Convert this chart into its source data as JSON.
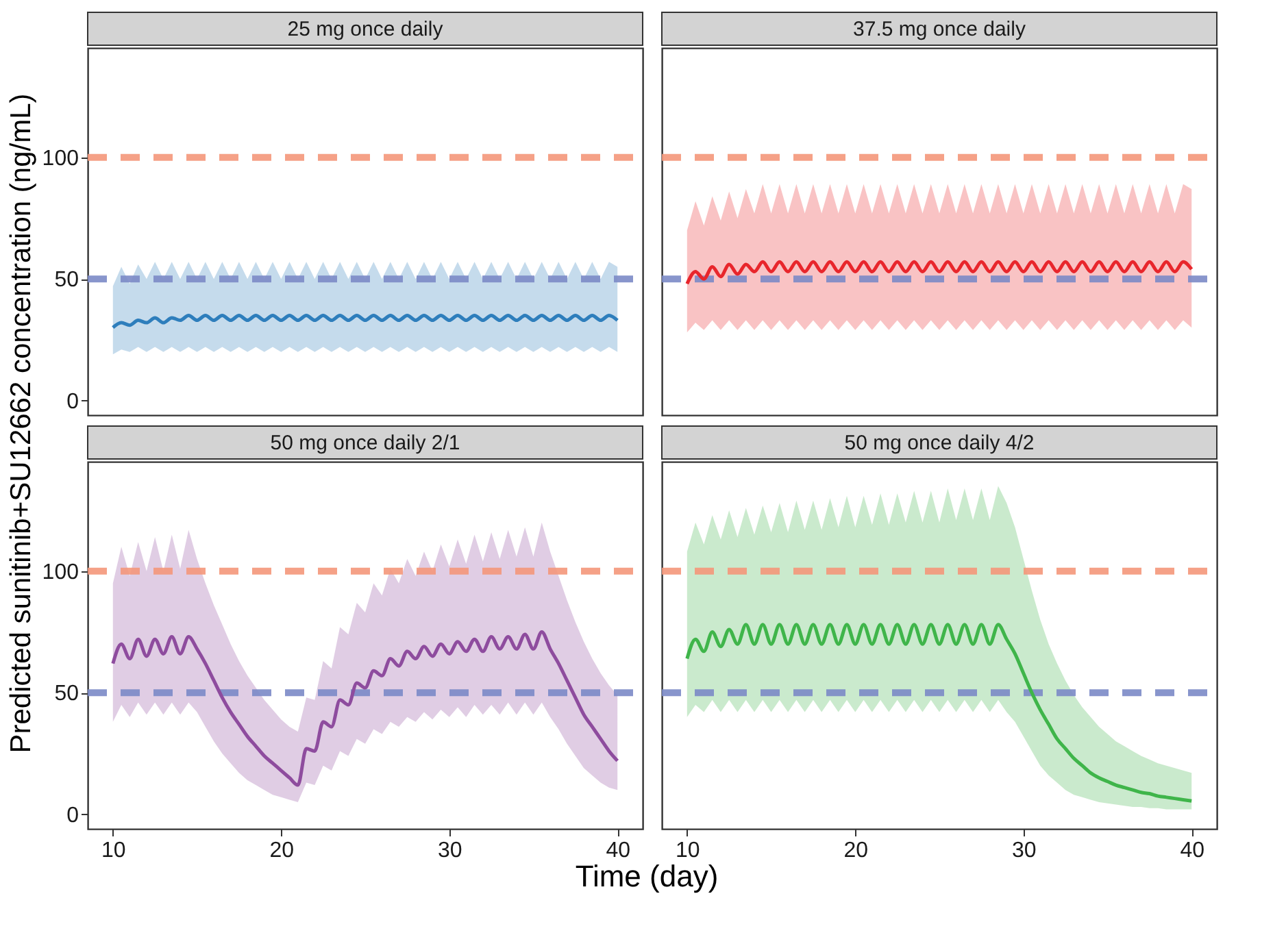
{
  "chart_data": [
    {
      "type": "line",
      "title": "25 mg once daily",
      "ylabel": "Predicted sunitinib+SU12662 concentration (ng/mL)",
      "xlim": [
        8.5,
        41.5
      ],
      "ylim": [
        -6,
        145
      ],
      "xticks": [
        10,
        20,
        30,
        40
      ],
      "yticks": [
        0,
        50,
        100
      ],
      "tick_labels": "y",
      "grid": false,
      "line_style": "solid",
      "x": [
        10,
        10.5,
        11,
        11.5,
        12,
        12.5,
        13,
        13.5,
        14,
        14.5,
        15,
        15.5,
        16,
        16.5,
        17,
        17.5,
        18,
        18.5,
        19,
        19.5,
        20,
        20.5,
        21,
        21.5,
        22,
        22.5,
        23,
        23.5,
        24,
        24.5,
        25,
        25.5,
        26,
        26.5,
        27,
        27.5,
        28,
        28.5,
        29,
        29.5,
        30,
        30.5,
        31,
        31.5,
        32,
        32.5,
        33,
        33.5,
        34,
        34.5,
        35,
        35.5,
        36,
        36.5,
        37,
        37.5,
        38,
        38.5,
        39,
        39.5,
        40
      ],
      "series": [
        {
          "color": "#2e7ebc",
          "values": [
            30,
            32,
            31,
            33,
            32,
            34,
            32,
            34,
            33,
            35,
            33,
            35,
            33,
            35,
            33,
            35,
            33,
            35,
            33,
            35,
            33,
            35,
            33,
            35,
            33,
            35,
            33,
            35,
            33,
            35,
            33,
            35,
            33,
            35,
            33,
            35,
            33,
            35,
            33,
            35,
            33,
            35,
            33,
            35,
            33,
            35,
            33,
            35,
            33,
            35,
            33,
            35,
            33,
            35,
            33,
            35,
            33,
            35,
            33,
            35,
            33
          ],
          "lower": [
            19,
            21,
            20,
            22,
            20,
            22,
            20,
            22,
            20,
            22,
            20,
            22,
            20,
            22,
            20,
            22,
            20,
            22,
            20,
            22,
            20,
            22,
            20,
            22,
            20,
            22,
            20,
            22,
            20,
            22,
            20,
            22,
            20,
            22,
            20,
            22,
            20,
            22,
            20,
            22,
            20,
            22,
            20,
            22,
            20,
            22,
            20,
            22,
            20,
            22,
            20,
            22,
            20,
            22,
            20,
            22,
            20,
            22,
            20,
            22,
            20
          ],
          "upper": [
            47,
            55,
            48,
            56,
            50,
            57,
            50,
            57,
            50,
            57,
            50,
            57,
            50,
            57,
            50,
            57,
            50,
            57,
            50,
            57,
            50,
            57,
            50,
            57,
            50,
            57,
            50,
            57,
            50,
            57,
            50,
            57,
            50,
            57,
            50,
            57,
            50,
            57,
            50,
            57,
            50,
            57,
            50,
            57,
            50,
            57,
            50,
            57,
            50,
            57,
            50,
            57,
            50,
            57,
            50,
            57,
            50,
            57,
            50,
            57,
            55
          ]
        }
      ],
      "ref_lines": [
        {
          "axis": "y",
          "value": 100,
          "color": "#f4977a",
          "line_style": "dashed"
        },
        {
          "axis": "y",
          "value": 50,
          "color": "#7b8ac7",
          "line_style": "dashed"
        }
      ]
    },
    {
      "type": "line",
      "title": "37.5 mg once daily",
      "xlim": [
        8.5,
        41.5
      ],
      "ylim": [
        -6,
        145
      ],
      "xticks": [
        10,
        20,
        30,
        40
      ],
      "yticks": [
        0,
        50,
        100
      ],
      "tick_labels": false,
      "grid": false,
      "line_style": "solid",
      "x": [
        10,
        10.5,
        11,
        11.5,
        12,
        12.5,
        13,
        13.5,
        14,
        14.5,
        15,
        15.5,
        16,
        16.5,
        17,
        17.5,
        18,
        18.5,
        19,
        19.5,
        20,
        20.5,
        21,
        21.5,
        22,
        22.5,
        23,
        23.5,
        24,
        24.5,
        25,
        25.5,
        26,
        26.5,
        27,
        27.5,
        28,
        28.5,
        29,
        29.5,
        30,
        30.5,
        31,
        31.5,
        32,
        32.5,
        33,
        33.5,
        34,
        34.5,
        35,
        35.5,
        36,
        36.5,
        37,
        37.5,
        38,
        38.5,
        39,
        39.5,
        40
      ],
      "series": [
        {
          "color": "#e8262c",
          "values": [
            48,
            53,
            50,
            55,
            51,
            56,
            52,
            56,
            53,
            57,
            53,
            57,
            53,
            57,
            53,
            57,
            53,
            57,
            53,
            57,
            53,
            57,
            53,
            57,
            53,
            57,
            53,
            57,
            53,
            57,
            53,
            57,
            53,
            57,
            53,
            57,
            53,
            57,
            53,
            57,
            53,
            57,
            53,
            57,
            53,
            57,
            53,
            57,
            53,
            57,
            53,
            57,
            53,
            57,
            53,
            57,
            53,
            57,
            53,
            57,
            54
          ],
          "lower": [
            28,
            32,
            29,
            33,
            29,
            33,
            29,
            33,
            29,
            33,
            29,
            33,
            29,
            33,
            29,
            33,
            29,
            33,
            29,
            33,
            29,
            33,
            29,
            33,
            29,
            33,
            29,
            33,
            29,
            33,
            29,
            33,
            29,
            33,
            29,
            33,
            29,
            33,
            29,
            33,
            29,
            33,
            29,
            33,
            29,
            33,
            29,
            33,
            29,
            33,
            29,
            33,
            29,
            33,
            29,
            33,
            29,
            33,
            29,
            33,
            30
          ],
          "upper": [
            70,
            82,
            72,
            84,
            74,
            86,
            75,
            87,
            77,
            89,
            77,
            89,
            77,
            89,
            77,
            89,
            77,
            89,
            77,
            89,
            77,
            89,
            77,
            89,
            77,
            89,
            77,
            89,
            77,
            89,
            77,
            89,
            77,
            89,
            77,
            89,
            77,
            89,
            77,
            89,
            77,
            89,
            77,
            89,
            77,
            89,
            77,
            89,
            77,
            89,
            77,
            89,
            77,
            89,
            77,
            89,
            77,
            89,
            77,
            89,
            87
          ]
        }
      ],
      "ref_lines": [
        {
          "axis": "y",
          "value": 100,
          "color": "#f4977a",
          "line_style": "dashed"
        },
        {
          "axis": "y",
          "value": 50,
          "color": "#7b8ac7",
          "line_style": "dashed"
        }
      ]
    },
    {
      "type": "line",
      "title": "50 mg once daily 2/1",
      "xlabel": "Time (day)",
      "xlim": [
        8.5,
        41.5
      ],
      "ylim": [
        -6,
        145
      ],
      "xticks": [
        10,
        20,
        30,
        40
      ],
      "yticks": [
        0,
        50,
        100
      ],
      "grid": false,
      "line_style": "solid",
      "x": [
        10,
        10.5,
        11,
        11.5,
        12,
        12.5,
        13,
        13.5,
        14,
        14.5,
        15,
        15.5,
        16,
        16.5,
        17,
        17.5,
        18,
        18.5,
        19,
        19.5,
        20,
        20.5,
        21,
        21.5,
        22,
        22.5,
        23,
        23.5,
        24,
        24.5,
        25,
        25.5,
        26,
        26.5,
        27,
        27.5,
        28,
        28.5,
        29,
        29.5,
        30,
        30.5,
        31,
        31.5,
        32,
        32.5,
        33,
        33.5,
        34,
        34.5,
        35,
        35.5,
        36,
        36.5,
        37,
        37.5,
        38,
        38.5,
        39,
        39.5,
        40
      ],
      "series": [
        {
          "color": "#8e4c9e",
          "values": [
            62,
            70,
            64,
            72,
            65,
            72,
            66,
            73,
            66,
            73,
            68,
            62,
            55,
            48,
            42,
            37,
            32,
            28,
            24,
            21,
            18,
            15,
            12,
            27,
            26,
            38,
            36,
            47,
            45,
            54,
            52,
            59,
            57,
            64,
            61,
            67,
            64,
            69,
            65,
            70,
            66,
            71,
            67,
            72,
            67,
            73,
            68,
            73,
            68,
            74,
            68,
            75,
            68,
            62,
            55,
            48,
            41,
            36,
            31,
            26,
            22
          ],
          "lower": [
            38,
            45,
            40,
            46,
            41,
            46,
            41,
            46,
            41,
            46,
            42,
            36,
            30,
            25,
            21,
            17,
            14,
            12,
            10,
            8,
            7,
            6,
            5,
            13,
            12,
            20,
            18,
            26,
            24,
            31,
            29,
            35,
            33,
            38,
            36,
            40,
            38,
            42,
            39,
            43,
            40,
            44,
            40,
            45,
            41,
            45,
            41,
            46,
            41,
            46,
            41,
            46,
            40,
            35,
            29,
            24,
            19,
            16,
            13,
            11,
            10
          ],
          "upper": [
            95,
            110,
            98,
            112,
            100,
            114,
            100,
            115,
            101,
            117,
            105,
            95,
            86,
            78,
            70,
            63,
            57,
            52,
            47,
            43,
            39,
            36,
            34,
            48,
            47,
            63,
            60,
            77,
            74,
            87,
            83,
            95,
            90,
            101,
            95,
            105,
            98,
            108,
            100,
            111,
            102,
            113,
            103,
            115,
            104,
            116,
            105,
            117,
            106,
            118,
            106,
            120,
            108,
            98,
            88,
            79,
            71,
            64,
            58,
            53,
            49
          ]
        }
      ],
      "ref_lines": [
        {
          "axis": "y",
          "value": 100,
          "color": "#f4977a",
          "line_style": "dashed"
        },
        {
          "axis": "y",
          "value": 50,
          "color": "#7b8ac7",
          "line_style": "dashed"
        }
      ]
    },
    {
      "type": "line",
      "title": "50 mg once daily 4/2",
      "xlim": [
        8.5,
        41.5
      ],
      "ylim": [
        -6,
        145
      ],
      "xticks": [
        10,
        20,
        30,
        40
      ],
      "yticks": [
        0,
        50,
        100
      ],
      "tick_labels": "x",
      "grid": false,
      "line_style": "solid",
      "x": [
        10,
        10.5,
        11,
        11.5,
        12,
        12.5,
        13,
        13.5,
        14,
        14.5,
        15,
        15.5,
        16,
        16.5,
        17,
        17.5,
        18,
        18.5,
        19,
        19.5,
        20,
        20.5,
        21,
        21.5,
        22,
        22.5,
        23,
        23.5,
        24,
        24.5,
        25,
        25.5,
        26,
        26.5,
        27,
        27.5,
        28,
        28.5,
        29,
        29.5,
        30,
        30.5,
        31,
        31.5,
        32,
        32.5,
        33,
        33.5,
        34,
        34.5,
        35,
        35.5,
        36,
        36.5,
        37,
        37.5,
        38,
        38.5,
        39,
        39.5,
        40
      ],
      "series": [
        {
          "color": "#3fb54a",
          "values": [
            64,
            72,
            67,
            75,
            69,
            76,
            70,
            78,
            70,
            78,
            70,
            78,
            70,
            78,
            70,
            78,
            70,
            78,
            70,
            78,
            70,
            78,
            70,
            78,
            70,
            78,
            70,
            78,
            70,
            78,
            70,
            78,
            70,
            78,
            70,
            78,
            70,
            78,
            72,
            66,
            58,
            50,
            43,
            37,
            31,
            27,
            23,
            20,
            17,
            15,
            13.5,
            12,
            11,
            10,
            9,
            8.5,
            7.5,
            7,
            6.5,
            6,
            5.5
          ],
          "lower": [
            40,
            45,
            42,
            47,
            42,
            47,
            42,
            47,
            42,
            47,
            42,
            47,
            42,
            47,
            42,
            47,
            42,
            47,
            42,
            47,
            42,
            47,
            42,
            47,
            42,
            47,
            42,
            47,
            42,
            47,
            42,
            47,
            42,
            47,
            42,
            47,
            42,
            47,
            42,
            38,
            32,
            26,
            20,
            16,
            13,
            10,
            8,
            7,
            6,
            5,
            4.5,
            4,
            3.5,
            3,
            3,
            2.5,
            2.5,
            2,
            2,
            2,
            2
          ],
          "upper": [
            108,
            120,
            111,
            123,
            113,
            125,
            114,
            126,
            115,
            127,
            116,
            128,
            116,
            129,
            117,
            129,
            117,
            130,
            118,
            131,
            118,
            131,
            119,
            132,
            119,
            132,
            120,
            133,
            120,
            133,
            120,
            134,
            121,
            134,
            121,
            134,
            121,
            135,
            128,
            118,
            105,
            92,
            80,
            70,
            62,
            55,
            49,
            44,
            40,
            36,
            33,
            30,
            28,
            26,
            24,
            22.5,
            21,
            20,
            19,
            18,
            17
          ]
        }
      ],
      "ref_lines": [
        {
          "axis": "y",
          "value": 100,
          "color": "#f4977a",
          "line_style": "dashed"
        },
        {
          "axis": "y",
          "value": 50,
          "color": "#7b8ac7",
          "line_style": "dashed"
        }
      ]
    }
  ]
}
